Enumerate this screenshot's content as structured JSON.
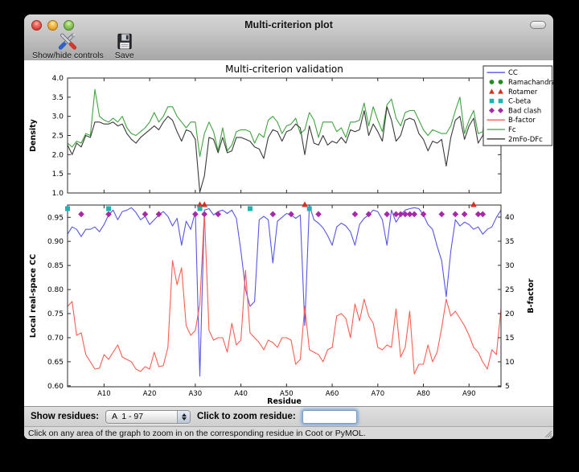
{
  "window": {
    "title": "Multi-criterion plot"
  },
  "toolbar": {
    "items": [
      {
        "label": "Show/hide controls"
      },
      {
        "label": "Save"
      }
    ]
  },
  "controls": {
    "show_residues_label": "Show residues:",
    "chain_selector_value": "A  1 - 97",
    "zoom_label": "Click to zoom residue:",
    "zoom_input_value": ""
  },
  "statusbar": {
    "text": "Click on any area of the graph to zoom in on the corresponding residue in Coot or PyMOL."
  },
  "chart_data": {
    "type": "line",
    "title": "Multi-criterion validation",
    "xlabel": "Residue",
    "xlim": [
      2,
      97
    ],
    "x_ticks": [
      {
        "v": 10,
        "label": "A10"
      },
      {
        "v": 20,
        "label": "A20"
      },
      {
        "v": 30,
        "label": "A30"
      },
      {
        "v": 40,
        "label": "A40"
      },
      {
        "v": 50,
        "label": "A50"
      },
      {
        "v": 60,
        "label": "A60"
      },
      {
        "v": 70,
        "label": "A70"
      },
      {
        "v": 80,
        "label": "A80"
      },
      {
        "v": 90,
        "label": "A90"
      }
    ],
    "residue_start": 1,
    "panels": [
      {
        "name": "density",
        "ylabel": "Density",
        "ylim": [
          1.0,
          4.0
        ],
        "yticks": [
          1.0,
          1.5,
          2.0,
          2.5,
          3.0,
          3.5,
          4.0
        ],
        "ytick_labels": [
          "1.0",
          "1.5",
          "2.0",
          "2.5",
          "3.0",
          "3.5",
          "4.0"
        ],
        "series": [
          {
            "name": "Fc",
            "color": "#3fa43f",
            "axis": "left",
            "values": [
              1.45,
              2.3,
              2.2,
              2.35,
              2.3,
              2.55,
              2.5,
              3.7,
              3.0,
              2.9,
              2.85,
              2.95,
              2.85,
              3.0,
              2.7,
              2.55,
              2.5,
              2.6,
              2.7,
              2.85,
              3.1,
              2.85,
              3.0,
              3.25,
              3.25,
              3.0,
              2.85,
              2.7,
              2.85,
              2.85,
              1.95,
              2.55,
              2.85,
              2.6,
              2.1,
              2.7,
              2.1,
              2.25,
              2.6,
              2.65,
              2.65,
              2.6,
              2.3,
              2.55,
              2.45,
              2.9,
              3.0,
              2.85,
              2.55,
              2.75,
              2.8,
              2.95,
              2.55,
              2.65,
              3.1,
              2.9,
              2.45,
              2.85,
              2.85,
              2.85,
              2.6,
              2.7,
              2.45,
              2.85,
              2.85,
              2.9,
              3.35,
              2.75,
              3.25,
              2.9,
              2.6,
              3.3,
              3.45,
              2.95,
              2.75,
              3.1,
              3.15,
              3.15,
              2.9,
              2.65,
              2.5,
              2.65,
              2.6,
              2.55,
              2.55,
              2.75,
              3.15,
              3.5,
              2.55,
              2.9,
              3.15,
              2.55,
              2.6,
              3.6,
              2.8,
              3.1,
              3.15
            ]
          },
          {
            "name": "2mFo-DFc",
            "color": "#3a3a3a",
            "axis": "left",
            "values": [
              1.3,
              2.25,
              2.0,
              2.3,
              2.2,
              2.5,
              2.45,
              2.85,
              2.85,
              2.8,
              2.8,
              2.85,
              2.75,
              2.8,
              2.55,
              2.4,
              2.3,
              2.45,
              2.55,
              2.65,
              2.75,
              2.65,
              2.85,
              3.0,
              2.9,
              2.6,
              2.35,
              2.65,
              2.6,
              2.4,
              1.02,
              1.45,
              2.45,
              2.4,
              2.05,
              2.45,
              2.05,
              2.1,
              2.45,
              2.45,
              2.4,
              2.35,
              2.2,
              2.15,
              1.9,
              2.45,
              2.65,
              2.6,
              2.35,
              2.6,
              2.65,
              2.8,
              2.7,
              2.0,
              2.75,
              2.3,
              2.25,
              2.5,
              2.25,
              2.35,
              2.3,
              2.45,
              2.3,
              2.65,
              2.6,
              2.65,
              3.15,
              2.5,
              2.8,
              2.6,
              2.35,
              3.25,
              2.9,
              2.35,
              2.5,
              2.9,
              2.95,
              2.9,
              2.55,
              2.4,
              2.1,
              2.35,
              2.3,
              2.4,
              1.7,
              2.45,
              2.9,
              3.0,
              2.4,
              2.75,
              2.95,
              2.3,
              2.5,
              3.3,
              2.5,
              2.6,
              3.2
            ]
          }
        ]
      },
      {
        "name": "cc-bfactor",
        "ylabel": "Local real-space CC",
        "ylim": [
          0.598,
          0.9755
        ],
        "yticks": [
          0.6,
          0.65,
          0.7,
          0.75,
          0.8,
          0.85,
          0.9,
          0.95
        ],
        "ytick_labels": [
          "0.60",
          "0.65",
          "0.70",
          "0.75",
          "0.80",
          "0.85",
          "0.90",
          "0.95"
        ],
        "ylabel_right": "B-factor",
        "ylim_right": [
          4.83,
          42.5
        ],
        "yticks_right": [
          5,
          10,
          15,
          20,
          25,
          30,
          35,
          40
        ],
        "ytick_labels_right": [
          "5",
          "10",
          "15",
          "20",
          "25",
          "30",
          "35",
          "40"
        ],
        "series": [
          {
            "name": "CC",
            "color": "#5656e8",
            "axis": "left",
            "values": [
              0.845,
              0.915,
              0.93,
              0.925,
              0.91,
              0.925,
              0.925,
              0.93,
              0.92,
              0.935,
              0.955,
              0.965,
              0.945,
              0.962,
              0.965,
              0.97,
              0.96,
              0.945,
              0.952,
              0.935,
              0.945,
              0.955,
              0.962,
              0.952,
              0.932,
              0.948,
              0.892,
              0.942,
              0.925,
              0.962,
              0.62,
              0.965,
              0.968,
              0.955,
              0.962,
              0.965,
              0.958,
              0.965,
              0.948,
              0.88,
              0.8,
              0.765,
              0.775,
              0.945,
              0.952,
              0.945,
              0.855,
              0.942,
              0.95,
              0.958,
              0.955,
              0.948,
              0.955,
              0.725,
              0.975,
              0.945,
              0.938,
              0.928,
              0.912,
              0.892,
              0.93,
              0.938,
              0.932,
              0.92,
              0.892,
              0.935,
              0.948,
              0.955,
              0.965,
              0.962,
              0.945,
              0.892,
              0.965,
              0.94,
              0.955,
              0.965,
              0.968,
              0.97,
              0.968,
              0.955,
              0.935,
              0.925,
              0.89,
              0.86,
              0.785,
              0.88,
              0.945,
              0.932,
              0.94,
              0.935,
              0.925,
              0.93,
              0.915,
              0.925,
              0.93,
              0.95,
              0.965
            ]
          },
          {
            "name": "B-factor",
            "color": "#f95d52",
            "axis": "right",
            "values": [
              27,
              21.5,
              22.5,
              15.5,
              16,
              11.5,
              10,
              8.5,
              8.7,
              11.5,
              10.5,
              12,
              13.5,
              11,
              10.5,
              10,
              8.5,
              8,
              9,
              8.5,
              12,
              9,
              9.2,
              13,
              31,
              26,
              29.5,
              17.5,
              15.5,
              16.5,
              22,
              41,
              16.5,
              14.5,
              15,
              15,
              12,
              18,
              13.5,
              14.5,
              29,
              16,
              15,
              14,
              12.5,
              14.5,
              14,
              13,
              15,
              15,
              14.5,
              9.5,
              10.5,
              21.5,
              12.5,
              12,
              11.5,
              10,
              12.5,
              13,
              19.5,
              20,
              19,
              15,
              22,
              18.5,
              23,
              19.5,
              18,
              13,
              12.5,
              13.5,
              13,
              21,
              11,
              13,
              20.5,
              7.5,
              9.5,
              9.5,
              13.5,
              10,
              12,
              17,
              23,
              19.5,
              20.5,
              19,
              17.5,
              15.5,
              13,
              12,
              10,
              8.5,
              12.5,
              11.5,
              21
            ]
          }
        ],
        "marker_rows": [
          {
            "name": "Rotamer",
            "shape": "triangle",
            "color": "#d92e1c",
            "y": 0.9765,
            "residues": [
              31,
              32,
              54,
              91
            ]
          },
          {
            "name": "C-beta",
            "shape": "square",
            "color": "#22b2b2",
            "y": 0.968,
            "residues": [
              2,
              11,
              31,
              42,
              55
            ]
          },
          {
            "name": "Bad clash",
            "shape": "diamond",
            "color": "#a928a9",
            "y": 0.9565,
            "residues": [
              5,
              11,
              19,
              22,
              30,
              32,
              35,
              47,
              51,
              57,
              65,
              68,
              72,
              74,
              75,
              76,
              77,
              78,
              80,
              84,
              87,
              89,
              92,
              93
            ]
          },
          {
            "name": "Ramachandran",
            "shape": "circle",
            "color": "#1e8f1e",
            "y": 0.968,
            "residues": []
          }
        ]
      }
    ],
    "legend": {
      "position": "upper right",
      "entries": [
        {
          "label": "CC",
          "type": "line",
          "color": "#5656e8"
        },
        {
          "label": "Ramachandran",
          "type": "circle",
          "color": "#1e8f1e"
        },
        {
          "label": "Rotamer",
          "type": "triangle",
          "color": "#d92e1c"
        },
        {
          "label": "C-beta",
          "type": "square",
          "color": "#22b2b2"
        },
        {
          "label": "Bad clash",
          "type": "diamond",
          "color": "#a928a9"
        },
        {
          "label": "B-factor",
          "type": "line",
          "color": "#f95d52"
        },
        {
          "label": "Fc",
          "type": "line",
          "color": "#3fa43f"
        },
        {
          "label": "2mFo-DFc",
          "type": "line",
          "color": "#3a3a3a"
        }
      ]
    }
  }
}
